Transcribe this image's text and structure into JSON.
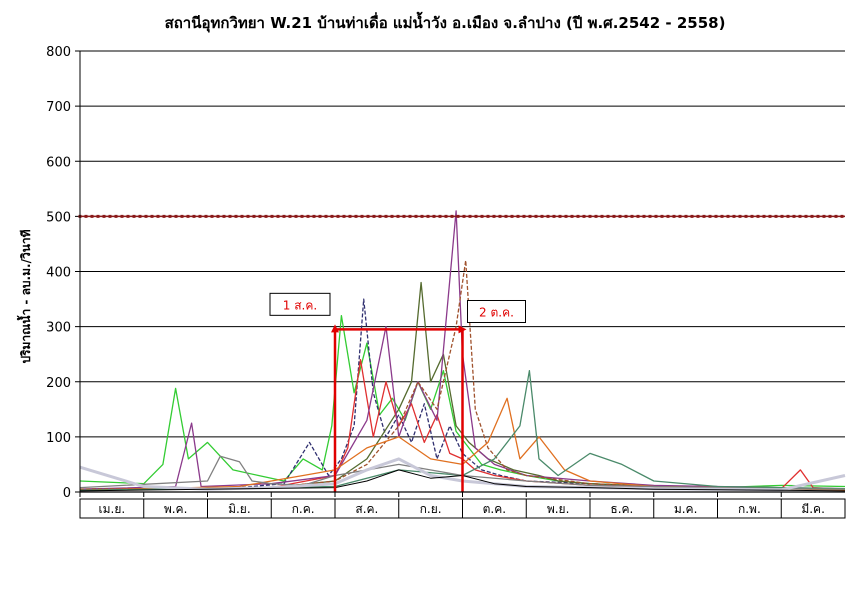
{
  "chart_data": {
    "type": "line",
    "title": "สถานีอุทกวิทยา W.21 บ้านท่าเดื่อ แม่น้ำวัง อ.เมือง จ.ลำปาง (ปี พ.ศ.2542 - 2558)",
    "ylabel": "ปริมาณน้ำ - ลบ.ม./วินาที",
    "xlabel": "",
    "ylim": [
      0,
      800
    ],
    "yticks": [
      0,
      100,
      200,
      300,
      400,
      500,
      600,
      700,
      800
    ],
    "ytick_labels": [
      "0",
      "100",
      "200",
      "300",
      "400",
      "500",
      "600",
      "700",
      "800"
    ],
    "grid": true,
    "legend": "none",
    "x_unit": "month",
    "xlim": [
      0,
      12
    ],
    "categories": [
      "เม.ย.",
      "พ.ค.",
      "มิ.ย.",
      "ก.ค.",
      "ส.ค.",
      "ก.ย.",
      "ต.ค.",
      "พ.ย.",
      "ธ.ค.",
      "ม.ค.",
      "ก.พ.",
      "มี.ค."
    ],
    "reference_line": {
      "value": 500,
      "color": "#8b1a1a"
    },
    "annotations": [
      {
        "label": "1 ส.ค.",
        "x": 4.0,
        "color": "#e00000"
      },
      {
        "label": "2 ต.ค.",
        "x": 6.0,
        "color": "#e00000"
      }
    ],
    "annotation_box": {
      "x_start": 4.0,
      "x_end": 6.0,
      "y_top": 295,
      "color": "#e00000"
    },
    "series": [
      {
        "color": "#33cc33",
        "dashed": false,
        "x": [
          0,
          1.0,
          1.3,
          1.5,
          1.7,
          2.0,
          2.4,
          2.8,
          3.2,
          3.5,
          3.8,
          3.95,
          4.1,
          4.3,
          4.5,
          4.7,
          4.9,
          5.1,
          5.3,
          5.5,
          5.7,
          5.9,
          6.1,
          6.3,
          6.6,
          7.0,
          7.5,
          8.0,
          9.0,
          10.0,
          11.0,
          12.0
        ],
        "y": [
          20,
          15,
          50,
          188,
          60,
          90,
          40,
          30,
          20,
          60,
          40,
          120,
          320,
          180,
          270,
          140,
          170,
          130,
          200,
          150,
          220,
          110,
          80,
          50,
          40,
          30,
          20,
          15,
          10,
          8,
          12,
          10
        ]
      },
      {
        "color": "#2f2f6f",
        "dashed": true,
        "x": [
          0,
          2.5,
          3.2,
          3.6,
          3.9,
          4.1,
          4.3,
          4.45,
          4.6,
          4.8,
          5.0,
          5.2,
          5.4,
          5.6,
          5.8,
          6.0,
          6.3,
          6.6,
          7.0,
          8.0,
          9.0,
          10.0,
          11.0,
          12.0
        ],
        "y": [
          5,
          8,
          15,
          90,
          30,
          60,
          120,
          350,
          180,
          100,
          140,
          90,
          160,
          60,
          120,
          70,
          40,
          30,
          20,
          15,
          10,
          8,
          6,
          5
        ]
      },
      {
        "color": "#556b2f",
        "dashed": false,
        "x": [
          0,
          3.0,
          4.0,
          4.5,
          5.0,
          5.2,
          5.35,
          5.5,
          5.7,
          5.9,
          6.1,
          6.4,
          6.8,
          7.2,
          7.5,
          8.0,
          9.0,
          10.0,
          11.0,
          12.0
        ],
        "y": [
          5,
          8,
          20,
          60,
          150,
          200,
          380,
          200,
          250,
          120,
          90,
          60,
          40,
          30,
          20,
          15,
          10,
          8,
          6,
          5
        ]
      },
      {
        "color": "#e03030",
        "dashed": false,
        "x": [
          0,
          3.0,
          4.0,
          4.2,
          4.4,
          4.6,
          4.8,
          5.0,
          5.2,
          5.4,
          5.6,
          5.8,
          6.0,
          6.2,
          6.5,
          7.0,
          8.0,
          9.0,
          10.0,
          11.0,
          11.3,
          11.5,
          12.0
        ],
        "y": [
          5,
          8,
          30,
          80,
          240,
          100,
          200,
          120,
          160,
          90,
          140,
          70,
          60,
          40,
          30,
          20,
          12,
          10,
          8,
          6,
          40,
          8,
          5
        ]
      },
      {
        "color": "#8b3a8b",
        "dashed": false,
        "x": [
          0,
          1.5,
          1.75,
          1.9,
          3.0,
          4.0,
          4.5,
          4.8,
          5.0,
          5.3,
          5.6,
          5.9,
          6.0,
          6.2,
          6.5,
          7.0,
          8.0,
          9.0,
          10.0,
          11.0,
          12.0
        ],
        "y": [
          5,
          10,
          125,
          10,
          15,
          30,
          130,
          300,
          100,
          200,
          130,
          510,
          250,
          80,
          50,
          30,
          20,
          12,
          10,
          8,
          6
        ]
      },
      {
        "color": "#a0522d",
        "dashed": true,
        "x": [
          0,
          3.0,
          4.0,
          4.5,
          5.0,
          5.3,
          5.6,
          5.9,
          6.05,
          6.2,
          6.4,
          6.7,
          7.0,
          8.0,
          9.0,
          10.0,
          11.0,
          12.0
        ],
        "y": [
          5,
          8,
          20,
          50,
          120,
          200,
          150,
          300,
          420,
          150,
          80,
          40,
          30,
          15,
          10,
          8,
          6,
          5
        ]
      },
      {
        "color": "#e07020",
        "dashed": false,
        "x": [
          0,
          2.5,
          3.0,
          3.5,
          4.0,
          4.5,
          5.0,
          5.5,
          6.0,
          6.4,
          6.7,
          6.9,
          7.2,
          7.6,
          8.0,
          9.0,
          10.0,
          11.0,
          12.0
        ],
        "y": [
          3,
          10,
          20,
          30,
          40,
          80,
          100,
          60,
          50,
          90,
          170,
          60,
          100,
          40,
          20,
          10,
          8,
          6,
          4
        ]
      },
      {
        "color": "#4a8a6a",
        "dashed": false,
        "x": [
          0,
          4.0,
          5.0,
          6.0,
          6.5,
          6.9,
          7.05,
          7.2,
          7.5,
          8.0,
          8.5,
          9.0,
          10.0,
          11.0,
          12.0
        ],
        "y": [
          3,
          10,
          40,
          30,
          60,
          120,
          220,
          60,
          30,
          70,
          50,
          20,
          10,
          8,
          6
        ]
      },
      {
        "color": "#808080",
        "dashed": false,
        "x": [
          0,
          2.0,
          2.2,
          2.5,
          2.7,
          3.0,
          3.5,
          4.0,
          5.0,
          6.0,
          7.0,
          8.0,
          9.0,
          10.0,
          11.0,
          12.0
        ],
        "y": [
          8,
          20,
          65,
          55,
          20,
          15,
          12,
          30,
          50,
          30,
          20,
          12,
          10,
          8,
          6,
          5
        ]
      },
      {
        "color": "#c8c8d8",
        "dashed": false,
        "width": 3,
        "x": [
          0,
          1.0,
          2.0,
          3.0,
          4.0,
          4.5,
          5.0,
          5.5,
          6.0,
          7.0,
          8.0,
          9.0,
          10.0,
          11.0,
          12.0
        ],
        "y": [
          45,
          10,
          5,
          8,
          15,
          40,
          60,
          30,
          20,
          10,
          8,
          6,
          5,
          4,
          30
        ]
      },
      {
        "color": "#000000",
        "dashed": false,
        "width": 1,
        "x": [
          0,
          4.0,
          4.5,
          5.0,
          5.5,
          6.0,
          6.5,
          7.0,
          8.0,
          9.0,
          10.0,
          11.0,
          12.0
        ],
        "y": [
          2,
          8,
          20,
          40,
          25,
          30,
          15,
          10,
          8,
          5,
          4,
          3,
          2
        ]
      }
    ]
  }
}
